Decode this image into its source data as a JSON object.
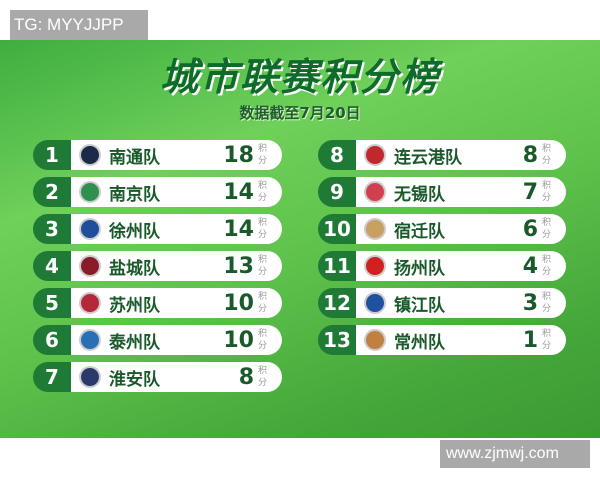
{
  "watermark_top": "TG: MYYJJPP",
  "watermark_bottom": "www.zjmwj.com",
  "title": "城市联赛积分榜",
  "subtitle": "数据截至7月20日",
  "points_unit": "积分",
  "teams": [
    {
      "rank": "1",
      "name": "南通队",
      "points": "18",
      "logo_color": "#1c2a4a"
    },
    {
      "rank": "2",
      "name": "南京队",
      "points": "14",
      "logo_color": "#2f8f4e"
    },
    {
      "rank": "3",
      "name": "徐州队",
      "points": "14",
      "logo_color": "#1f4f9a"
    },
    {
      "rank": "4",
      "name": "盐城队",
      "points": "13",
      "logo_color": "#8a1c2a"
    },
    {
      "rank": "5",
      "name": "苏州队",
      "points": "10",
      "logo_color": "#b5283a"
    },
    {
      "rank": "6",
      "name": "泰州队",
      "points": "10",
      "logo_color": "#2a6fb5"
    },
    {
      "rank": "7",
      "name": "淮安队",
      "points": "8",
      "logo_color": "#2a3a6a"
    },
    {
      "rank": "8",
      "name": "连云港队",
      "points": "8",
      "logo_color": "#c0282e"
    },
    {
      "rank": "9",
      "name": "无锡队",
      "points": "7",
      "logo_color": "#d04050"
    },
    {
      "rank": "10",
      "name": "宿迁队",
      "points": "6",
      "logo_color": "#c8a060"
    },
    {
      "rank": "11",
      "name": "扬州队",
      "points": "4",
      "logo_color": "#d02020"
    },
    {
      "rank": "12",
      "name": "镇江队",
      "points": "3",
      "logo_color": "#2050a0"
    },
    {
      "rank": "13",
      "name": "常州队",
      "points": "1",
      "logo_color": "#c08040"
    }
  ]
}
